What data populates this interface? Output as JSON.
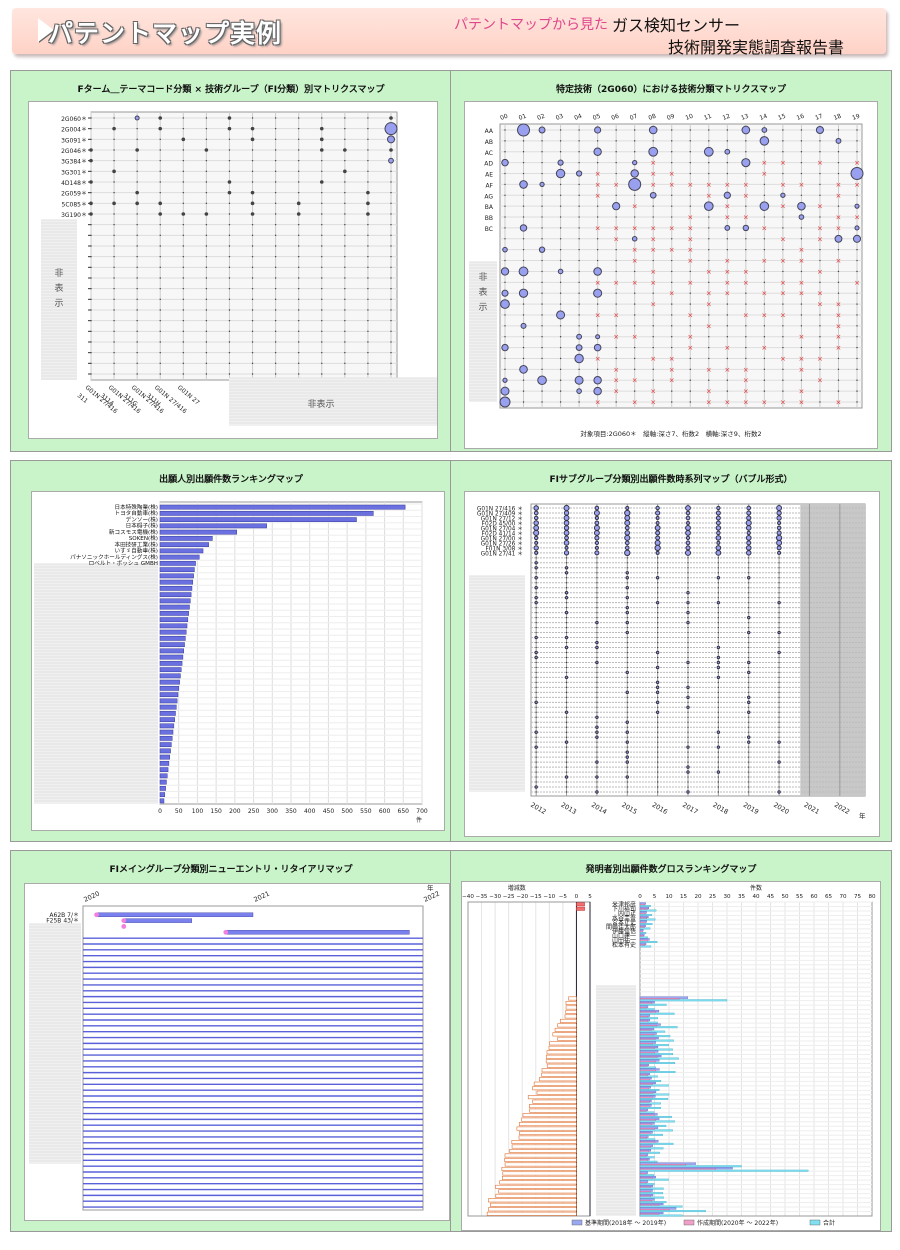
{
  "header": {
    "title": "パテントマップ実例",
    "subtitle_pink": "パテントマップから見た",
    "subtitle_line1": "ガス検知センサー",
    "subtitle_line2": "技術開発実態調査報告書"
  },
  "colors": {
    "section_bg": "#c9f3c9",
    "bubble": "#9aa0f0",
    "cross": "#e03030",
    "bar": "#6a70e0",
    "header_pink": "#e0468c"
  },
  "chart_data": [
    {
      "id": "p1",
      "type": "scatter",
      "title": "Fターム＿テーマコード分類 × 技術グループ（FI分類）別マトリクスマップ",
      "y_labels": [
        "2G060＊",
        "2G004＊",
        "3G091＊",
        "2G046＊",
        "3G384＊",
        "3G301＊",
        "4D148＊",
        "2G059＊",
        "5C085＊",
        "3G190＊"
      ],
      "x_labels": [
        "G01N 27/416 311",
        "G01N 27/416 311A",
        "G01N 27/416 311G",
        "G01N 27/416 311H",
        "G01N 27"
      ],
      "hidden_y_label": "非表示",
      "hidden_x_label": "非表示",
      "big_bubbles": [
        {
          "x": 13,
          "y": 1
        },
        {
          "x": 13,
          "y": 2
        }
      ]
    },
    {
      "id": "p2",
      "type": "scatter",
      "title": "特定技術（2G060）における技術分類マトリクスマップ",
      "x_labels": [
        "00",
        "01",
        "02",
        "03",
        "04",
        "05",
        "06",
        "07",
        "08",
        "09",
        "10",
        "11",
        "12",
        "13",
        "14",
        "15",
        "16",
        "17",
        "18",
        "19"
      ],
      "y_labels": [
        "AA",
        "AB",
        "AC",
        "AD",
        "AE",
        "AF",
        "AG",
        "BA",
        "BB",
        "BC"
      ],
      "hidden_y_label": "非表示",
      "footnote": "対象項目:2G060＊　縦軸:深さ7、桁数2　横軸:深さ9、桁数2",
      "big_bubbles": [
        {
          "x": 1,
          "y": 0
        },
        {
          "x": 19,
          "y": 4
        },
        {
          "x": 7,
          "y": 5
        }
      ]
    },
    {
      "id": "p3",
      "type": "bar",
      "title": "出願人別出願件数ランキングマップ",
      "categories": [
        "日本特殊陶業(株)",
        "トヨタ自動車(株)",
        "デンソー(株)",
        "日本碍子(株)",
        "新コスモス電機(株)",
        "SOKEN(株)",
        "本田技研工業(株)",
        "いすゞ自動車(株)",
        "パナソニックホールディングス(株)",
        "ロベルト・ボッシュ GMBH"
      ],
      "values": [
        655,
        570,
        525,
        285,
        205,
        140,
        130,
        115,
        105,
        95
      ],
      "xlim": [
        0,
        700
      ],
      "x_ticks": [
        "0",
        "50",
        "100",
        "150",
        "200",
        "250",
        "300",
        "350",
        "400",
        "450",
        "500",
        "550",
        "600",
        "650",
        "700"
      ],
      "xlabel": "件"
    },
    {
      "id": "p4",
      "type": "scatter",
      "title": "FIサブグループ分類別出願件数時系列マップ（バブル形式）",
      "categories": [
        "G01N 27/416",
        "G01N 27/409",
        "G01N 27/12",
        "F02D 45/00",
        "G01N 27/04",
        "F02D 41/14",
        "G01N 27/00",
        "G01N 27/26",
        "F01N 3/08",
        "G01N 27/41"
      ],
      "x": [
        "2012",
        "2013",
        "2014",
        "2015",
        "2016",
        "2017",
        "2018",
        "2019",
        "2020",
        "2021",
        "2022"
      ],
      "xlabel": "年"
    },
    {
      "id": "p5",
      "type": "bar",
      "title": "FIメイングループ分類別ニューエントリ・リタイアリマップ",
      "x": [
        "2020",
        "2021",
        "2022"
      ],
      "xlabel": "年",
      "categories": [
        "A62B 7/＊",
        "F25B 43/＊"
      ]
    },
    {
      "id": "p6",
      "type": "bar",
      "title": "発明者別出願件数グロスランキングマップ",
      "left_axis_label": "増減数",
      "left_ticks": [
        "−40",
        "−35",
        "−30",
        "−25",
        "−20",
        "−15",
        "−10",
        "−5",
        "0",
        "5"
      ],
      "right_axis_label": "件数",
      "right_ticks": [
        "0",
        "5",
        "10",
        "15",
        "20",
        "25",
        "30",
        "35",
        "40",
        "45",
        "50",
        "55",
        "60",
        "65",
        "70",
        "75",
        "80"
      ],
      "categories": [
        "米津邦彦",
        "下川裕司",
        "内山正",
        "水谷圭吾",
        "宮本正史",
        "間嶋佳太郎",
        "伊藤信悟",
        "山口建一",
        "山田祐一",
        "松本有史"
      ],
      "legend": [
        "基準期間(2018年 ～ 2019年)",
        "作成期間(2020年 ～ 2022年)",
        "合計"
      ]
    }
  ]
}
